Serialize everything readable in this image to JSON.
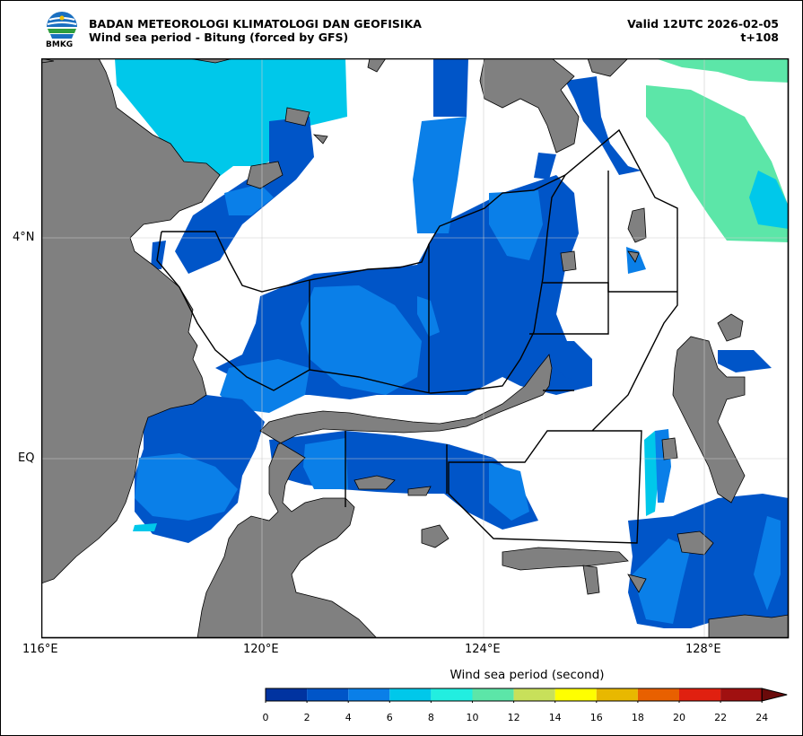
{
  "header": {
    "org_name": "BADAN METEOROLOGI KLIMATOLOGI DAN GEOFISIKA",
    "product_title": "Wind sea period - Bitung (forced by GFS)",
    "valid_time": "Valid 12UTC 2026-02-05",
    "forecast_step": "t+108"
  },
  "logo": {
    "text": "BMKG"
  },
  "map": {
    "lon_ticks": [
      "116°E",
      "120°E",
      "124°E",
      "128°E"
    ],
    "lat_ticks": [
      "4°N",
      "EQ"
    ],
    "land_color": "#808080",
    "ocean_color": "#ffffff"
  },
  "colorbar": {
    "title": "Wind sea period (second)",
    "ticks": [
      "0",
      "2",
      "4",
      "6",
      "8",
      "10",
      "12",
      "14",
      "16",
      "18",
      "20",
      "22",
      "24"
    ],
    "colors": [
      "#0033a0",
      "#0055c8",
      "#0a7fe8",
      "#00c8ea",
      "#22eee0",
      "#5ce6a8",
      "#c8e05a",
      "#ffff00",
      "#e8b800",
      "#e86000",
      "#e02010",
      "#a01010"
    ],
    "extend_color": "#6a0a0a"
  }
}
